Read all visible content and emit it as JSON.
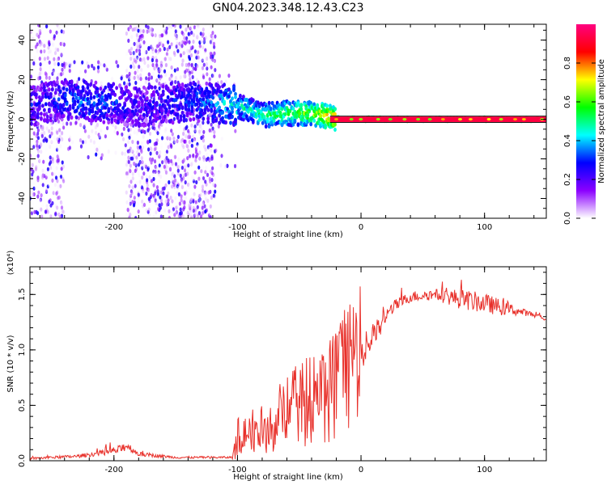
{
  "title": "GN04.2023.348.12.43.C23",
  "colors": {
    "snr_line": "#e8302a",
    "centerline": "#1a1a1a",
    "axis": "#000000"
  },
  "chart_data": [
    {
      "type": "heatmap",
      "xlabel": "Height of straight line (km)",
      "ylabel": "Frequency (Hz)",
      "xlim": [
        -268,
        150
      ],
      "ylim": [
        -50,
        48
      ],
      "xticks": [
        -200,
        -100,
        0,
        100
      ],
      "yticks": [
        -40,
        -20,
        0,
        20,
        40
      ],
      "xtick_labels": [
        "-200",
        "-100",
        "0",
        "100"
      ],
      "ytick_labels": [
        "-40",
        "-20",
        "0",
        "20",
        "40"
      ],
      "grid": false,
      "colormap": "rainbow (white-violet-blue-cyan-green-yellow-red-magenta)",
      "colorbar": {
        "label": "Normalized spectral amplitude",
        "range": [
          0,
          1
        ],
        "ticks": [
          0.0,
          0.2,
          0.4,
          0.6,
          0.8
        ],
        "tick_labels": [
          "0.0",
          "0.2",
          "0.4",
          "0.6",
          "0.8"
        ],
        "stops": [
          "#ffffff",
          "#8b00ff",
          "#0000ff",
          "#00ffff",
          "#00ff00",
          "#ffff00",
          "#ff0000",
          "#ff0080"
        ]
      },
      "ridge": {
        "description": "Dominant energy band near 0 Hz, spread and noisy below -120 km, converging to a sharp red line at 0 Hz from about -25 km onward",
        "points": [
          {
            "x": -265,
            "freq": 7,
            "amp": 0.25
          },
          {
            "x": -240,
            "freq": 10,
            "amp": 0.3
          },
          {
            "x": -220,
            "freq": 9,
            "amp": 0.35
          },
          {
            "x": -200,
            "freq": 8,
            "amp": 0.3
          },
          {
            "x": -180,
            "freq": 6,
            "amp": 0.22
          },
          {
            "x": -140,
            "freq": 9,
            "amp": 0.3
          },
          {
            "x": -120,
            "freq": 8,
            "amp": 0.35
          },
          {
            "x": -100,
            "freq": 7,
            "amp": 0.45
          },
          {
            "x": -80,
            "freq": 2,
            "amp": 0.5
          },
          {
            "x": -60,
            "freq": 3,
            "amp": 0.55
          },
          {
            "x": -40,
            "freq": 3,
            "amp": 0.65
          },
          {
            "x": -20,
            "freq": 0.5,
            "amp": 0.8
          },
          {
            "x": 0,
            "freq": 0,
            "amp": 0.92
          },
          {
            "x": 150,
            "freq": 0,
            "amp": 0.95
          }
        ]
      },
      "noise_regions": [
        {
          "x_from": -268,
          "x_to": -240,
          "freq_from": -50,
          "freq_to": 48,
          "density": 0.45
        },
        {
          "x_from": -190,
          "x_to": -118,
          "freq_from": -50,
          "freq_to": 48,
          "density": 0.55
        },
        {
          "x_from": -240,
          "x_to": -190,
          "freq_from": -20,
          "freq_to": 30,
          "density": 0.2
        },
        {
          "x_from": -118,
          "x_to": -100,
          "freq_from": -25,
          "freq_to": 25,
          "density": 0.12
        }
      ]
    },
    {
      "type": "line",
      "xlabel": "Height of straight line (km)",
      "ylabel": "SNR (10 * v/v)",
      "y_exponent_label": "(x10⁴)",
      "xlim": [
        -268,
        150
      ],
      "ylim": [
        0,
        1.75
      ],
      "xticks": [
        -200,
        -100,
        0,
        100
      ],
      "yticks": [
        0.0,
        0.5,
        1.0,
        1.5
      ],
      "xtick_labels": [
        "-200",
        "-100",
        "0",
        "100"
      ],
      "ytick_labels": [
        "0.0",
        "0.5",
        "1.0",
        "1.5"
      ],
      "grid": false,
      "series": [
        {
          "color": "#e8302a",
          "envelope": [
            {
              "x": -268,
              "base": 0.02,
              "amp": 0.02
            },
            {
              "x": -230,
              "base": 0.04,
              "amp": 0.03
            },
            {
              "x": -210,
              "base": 0.07,
              "amp": 0.05
            },
            {
              "x": -195,
              "base": 0.1,
              "amp": 0.08
            },
            {
              "x": -190,
              "base": 0.14,
              "amp": 0.09
            },
            {
              "x": -180,
              "base": 0.06,
              "amp": 0.04
            },
            {
              "x": -150,
              "base": 0.03,
              "amp": 0.02
            },
            {
              "x": -105,
              "base": 0.03,
              "amp": 0.02
            },
            {
              "x": -100,
              "base": 0.15,
              "amp": 0.3
            },
            {
              "x": -80,
              "base": 0.15,
              "amp": 0.3
            },
            {
              "x": -60,
              "base": 0.25,
              "amp": 0.45
            },
            {
              "x": -40,
              "base": 0.35,
              "amp": 0.55
            },
            {
              "x": -20,
              "base": 0.45,
              "amp": 0.6
            },
            {
              "x": -10,
              "base": 0.7,
              "amp": 0.55
            },
            {
              "x": 0,
              "base": 0.95,
              "amp": 0.35
            },
            {
              "x": 15,
              "base": 1.2,
              "amp": 0.2
            },
            {
              "x": 25,
              "base": 1.38,
              "amp": 0.12
            },
            {
              "x": 40,
              "base": 1.48,
              "amp": 0.1
            },
            {
              "x": 60,
              "base": 1.5,
              "amp": 0.1
            },
            {
              "x": 80,
              "base": 1.46,
              "amp": 0.18
            },
            {
              "x": 100,
              "base": 1.42,
              "amp": 0.18
            },
            {
              "x": 115,
              "base": 1.38,
              "amp": 0.14
            },
            {
              "x": 135,
              "base": 1.33,
              "amp": 0.05
            },
            {
              "x": 150,
              "base": 1.28,
              "amp": 0.04
            }
          ]
        }
      ]
    }
  ]
}
